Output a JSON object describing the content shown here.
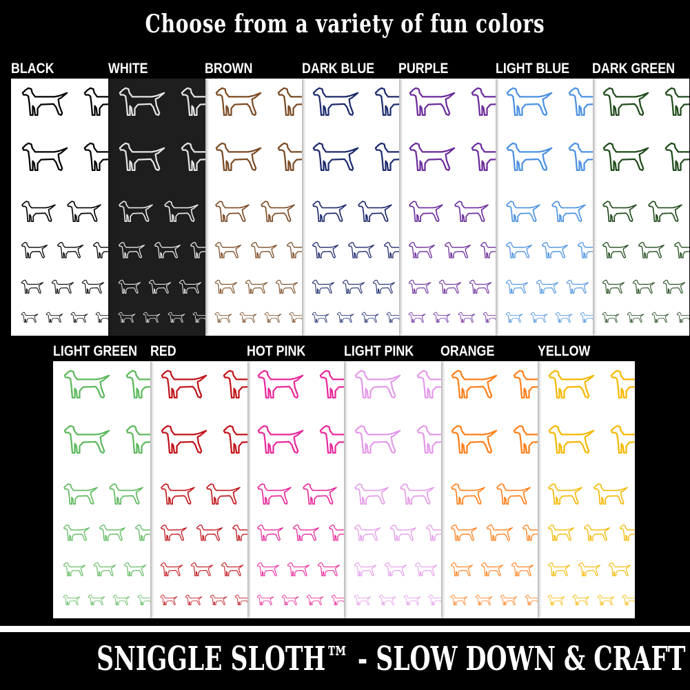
{
  "header": {
    "title": "Choose from a variety of fun colors"
  },
  "rows": [
    [
      {
        "label": "BLACK",
        "color": "#000000",
        "bg": "#ffffff"
      },
      {
        "label": "WHITE",
        "color": "#e6e6e6",
        "bg": "#1e1e1e"
      },
      {
        "label": "BROWN",
        "color": "#7a4a22",
        "bg": "#ffffff"
      },
      {
        "label": "DARK BLUE",
        "color": "#1c2a6b",
        "bg": "#ffffff"
      },
      {
        "label": "PURPLE",
        "color": "#6a2a9a",
        "bg": "#ffffff"
      },
      {
        "label": "LIGHT BLUE",
        "color": "#4a90e0",
        "bg": "#ffffff"
      },
      {
        "label": "DARK GREEN",
        "color": "#1f4a1a",
        "bg": "#ffffff"
      }
    ],
    [
      {
        "label": "LIGHT GREEN",
        "color": "#5cb85c",
        "bg": "#ffffff"
      },
      {
        "label": "RED",
        "color": "#c0141a",
        "bg": "#ffffff"
      },
      {
        "label": "HOT PINK",
        "color": "#e8289a",
        "bg": "#ffffff"
      },
      {
        "label": "LIGHT PINK",
        "color": "#e39ae8",
        "bg": "#ffffff"
      },
      {
        "label": "ORANGE",
        "color": "#ff7f1a",
        "bg": "#ffffff"
      },
      {
        "label": "YELLOW",
        "color": "#f5b800",
        "bg": "#ffffff"
      }
    ]
  ],
  "icon": "dog-outline-icon",
  "footer": {
    "text": "SNIGGLE SLOTH™ - SLOW DOWN & CRAFT"
  }
}
